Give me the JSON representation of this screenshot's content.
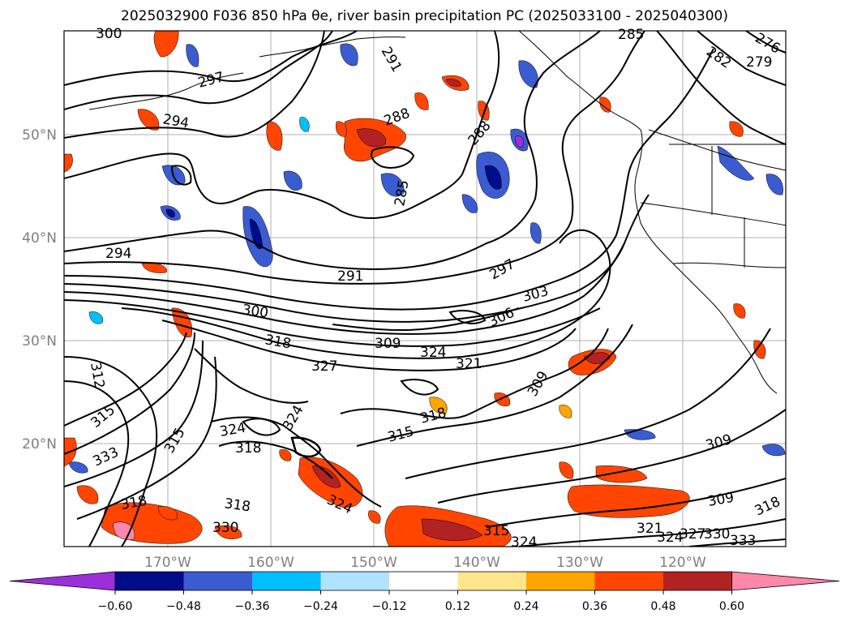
{
  "title": "2025032900 F036 850 hPa θe, river basin precipitation PC (2025033100 - 2025040300)",
  "map": {
    "lat_labels": [
      "50°N",
      "40°N",
      "30°N",
      "20°N"
    ],
    "lon_labels": [
      "170°W",
      "160°W",
      "150°W",
      "140°W",
      "130°W",
      "120°W"
    ],
    "gridlines": true
  },
  "contour_labels": [
    "300",
    "297",
    "294",
    "291",
    "288",
    "288",
    "285",
    "285",
    "282",
    "279",
    "276",
    "294",
    "291",
    "297",
    "303",
    "306",
    "300",
    "318",
    "309",
    "324",
    "321",
    "327",
    "312",
    "315",
    "324",
    "318",
    "324",
    "315",
    "315",
    "318",
    "309",
    "309",
    "333",
    "318",
    "318",
    "324",
    "330",
    "315",
    "324",
    "321",
    "324",
    "327",
    "330",
    "333",
    "309",
    "318"
  ],
  "colorbar": {
    "ticks": [
      "−0.60",
      "−0.48",
      "−0.36",
      "−0.24",
      "−0.12",
      "0.12",
      "0.24",
      "0.36",
      "0.48",
      "0.60"
    ],
    "colors": [
      "#9b30d9",
      "#000c8a",
      "#3a5cd0",
      "#00bfff",
      "#afe3ff",
      "#ffffff",
      "#ffe68a",
      "#ffa500",
      "#ff4500",
      "#b22222",
      "#ff88aa"
    ]
  },
  "colors": {
    "gridline": "#b0b0b0",
    "contour": "#000000",
    "coast": "#000000"
  }
}
